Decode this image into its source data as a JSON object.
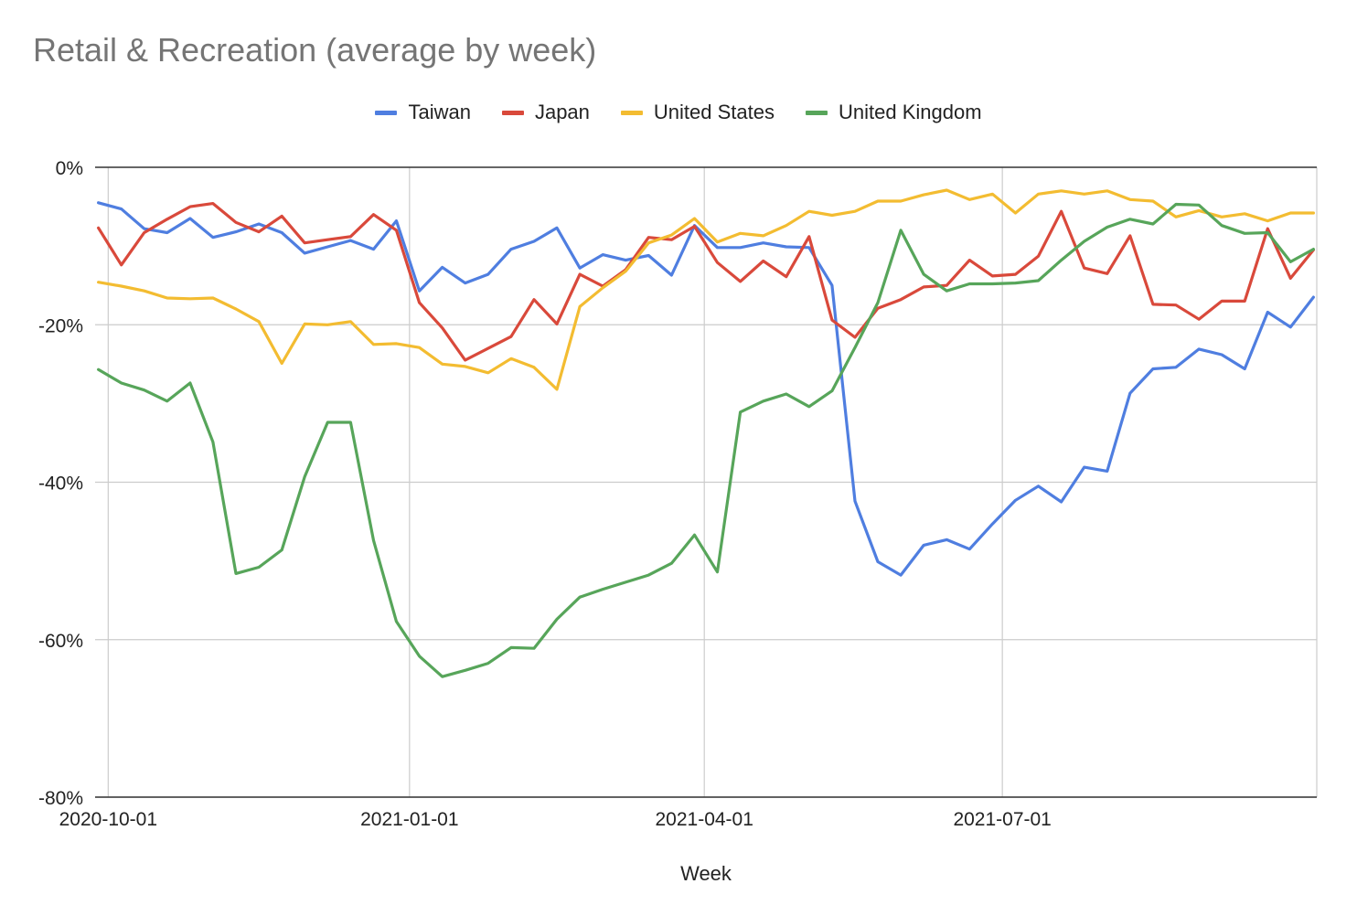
{
  "chart_data": {
    "type": "line",
    "title": "Retail & Recreation (average by week)",
    "xlabel": "Week",
    "ylabel": "",
    "x_tick_labels": [
      "2020-10-01",
      "2021-01-01",
      "2021-04-01",
      "2021-07-01"
    ],
    "y_tick_labels": [
      "0%",
      "-20%",
      "-40%",
      "-60%",
      "-80%"
    ],
    "ylim": [
      -80,
      0
    ],
    "grid": true,
    "legend_position": "top",
    "x": [
      "2020-09-28",
      "2020-10-05",
      "2020-10-12",
      "2020-10-19",
      "2020-10-26",
      "2020-11-02",
      "2020-11-09",
      "2020-11-16",
      "2020-11-23",
      "2020-11-30",
      "2020-12-07",
      "2020-12-14",
      "2020-12-21",
      "2020-12-28",
      "2021-01-04",
      "2021-01-11",
      "2021-01-18",
      "2021-01-25",
      "2021-02-01",
      "2021-02-08",
      "2021-02-15",
      "2021-02-22",
      "2021-03-01",
      "2021-03-08",
      "2021-03-15",
      "2021-03-22",
      "2021-03-29",
      "2021-04-05",
      "2021-04-12",
      "2021-04-19",
      "2021-04-26",
      "2021-05-03",
      "2021-05-10",
      "2021-05-17",
      "2021-05-24",
      "2021-05-31",
      "2021-06-07",
      "2021-06-14",
      "2021-06-21",
      "2021-06-28",
      "2021-07-05",
      "2021-07-12",
      "2021-07-19",
      "2021-07-26",
      "2021-08-02",
      "2021-08-09",
      "2021-08-16",
      "2021-08-23",
      "2021-08-30",
      "2021-09-06",
      "2021-09-13",
      "2021-09-20",
      "2021-09-27",
      "2021-10-04"
    ],
    "series": [
      {
        "name": "Taiwan",
        "color": "#4f7ee0",
        "values": [
          -4.5,
          -5.3,
          -7.8,
          -8.3,
          -6.5,
          -8.9,
          -8.2,
          -7.2,
          -8.3,
          -10.9,
          -10.1,
          -9.3,
          -10.4,
          -6.8,
          -15.7,
          -12.7,
          -14.7,
          -13.6,
          -10.4,
          -9.4,
          -7.7,
          -12.8,
          -11.1,
          -11.8,
          -11.2,
          -13.7,
          -7.4,
          -10.2,
          -10.2,
          -9.6,
          -10.1,
          -10.2,
          -15.0,
          -42.4,
          -50.1,
          -51.8,
          -48.0,
          -47.3,
          -48.5,
          -45.3,
          -42.3,
          -40.5,
          -42.5,
          -38.1,
          -38.6,
          -28.7,
          -25.6,
          -25.4,
          -23.1,
          -23.8,
          -25.6,
          -18.4,
          -20.3,
          -16.5
        ]
      },
      {
        "name": "Japan",
        "color": "#d9493b",
        "values": [
          -7.7,
          -12.4,
          -8.3,
          -6.6,
          -5.0,
          -4.6,
          -7.0,
          -8.2,
          -6.2,
          -9.6,
          -9.2,
          -8.8,
          -6.0,
          -8.0,
          -17.2,
          -20.4,
          -24.5,
          -23.0,
          -21.5,
          -16.8,
          -19.9,
          -13.6,
          -15.1,
          -13.0,
          -8.9,
          -9.2,
          -7.5,
          -12.1,
          -14.5,
          -11.9,
          -13.9,
          -8.8,
          -19.4,
          -21.6,
          -17.9,
          -16.8,
          -15.2,
          -15.0,
          -11.8,
          -13.8,
          -13.6,
          -11.3,
          -5.6,
          -12.8,
          -13.5,
          -8.7,
          -17.4,
          -17.5,
          -19.3,
          -17.0,
          -17.0,
          -7.8,
          -14.1,
          -10.5
        ]
      },
      {
        "name": "United States",
        "color": "#f3bc31",
        "values": [
          -14.6,
          -15.1,
          -15.7,
          -16.6,
          -16.7,
          -16.6,
          -18.0,
          -19.6,
          -24.9,
          -19.9,
          -20.0,
          -19.6,
          -22.5,
          -22.4,
          -22.9,
          -25.0,
          -25.3,
          -26.1,
          -24.3,
          -25.4,
          -28.2,
          -17.7,
          -15.3,
          -13.2,
          -9.6,
          -8.6,
          -6.5,
          -9.5,
          -8.4,
          -8.7,
          -7.4,
          -5.6,
          -6.1,
          -5.6,
          -4.3,
          -4.3,
          -3.5,
          -2.9,
          -4.1,
          -3.4,
          -5.8,
          -3.4,
          -3.0,
          -3.4,
          -3.0,
          -4.1,
          -4.3,
          -6.3,
          -5.5,
          -6.3,
          -5.9,
          -6.8,
          -5.8,
          -5.8
        ]
      },
      {
        "name": "United Kingdom",
        "color": "#57a55a",
        "values": [
          -25.7,
          -27.4,
          -28.3,
          -29.7,
          -27.4,
          -34.9,
          -51.6,
          -50.8,
          -48.6,
          -39.3,
          -32.4,
          -32.4,
          -47.4,
          -57.7,
          -62.1,
          -64.7,
          -63.9,
          -63.0,
          -61.0,
          -61.1,
          -57.4,
          -54.6,
          -53.6,
          -52.7,
          -51.8,
          -50.3,
          -46.7,
          -51.4,
          -31.1,
          -29.7,
          -28.8,
          -30.4,
          -28.4,
          -22.9,
          -17.2,
          -8.0,
          -13.6,
          -15.7,
          -14.8,
          -14.8,
          -14.7,
          -14.4,
          -11.8,
          -9.4,
          -7.6,
          -6.6,
          -7.2,
          -4.7,
          -4.8,
          -7.4,
          -8.4,
          -8.3,
          -12.0,
          -10.4
        ]
      }
    ]
  }
}
